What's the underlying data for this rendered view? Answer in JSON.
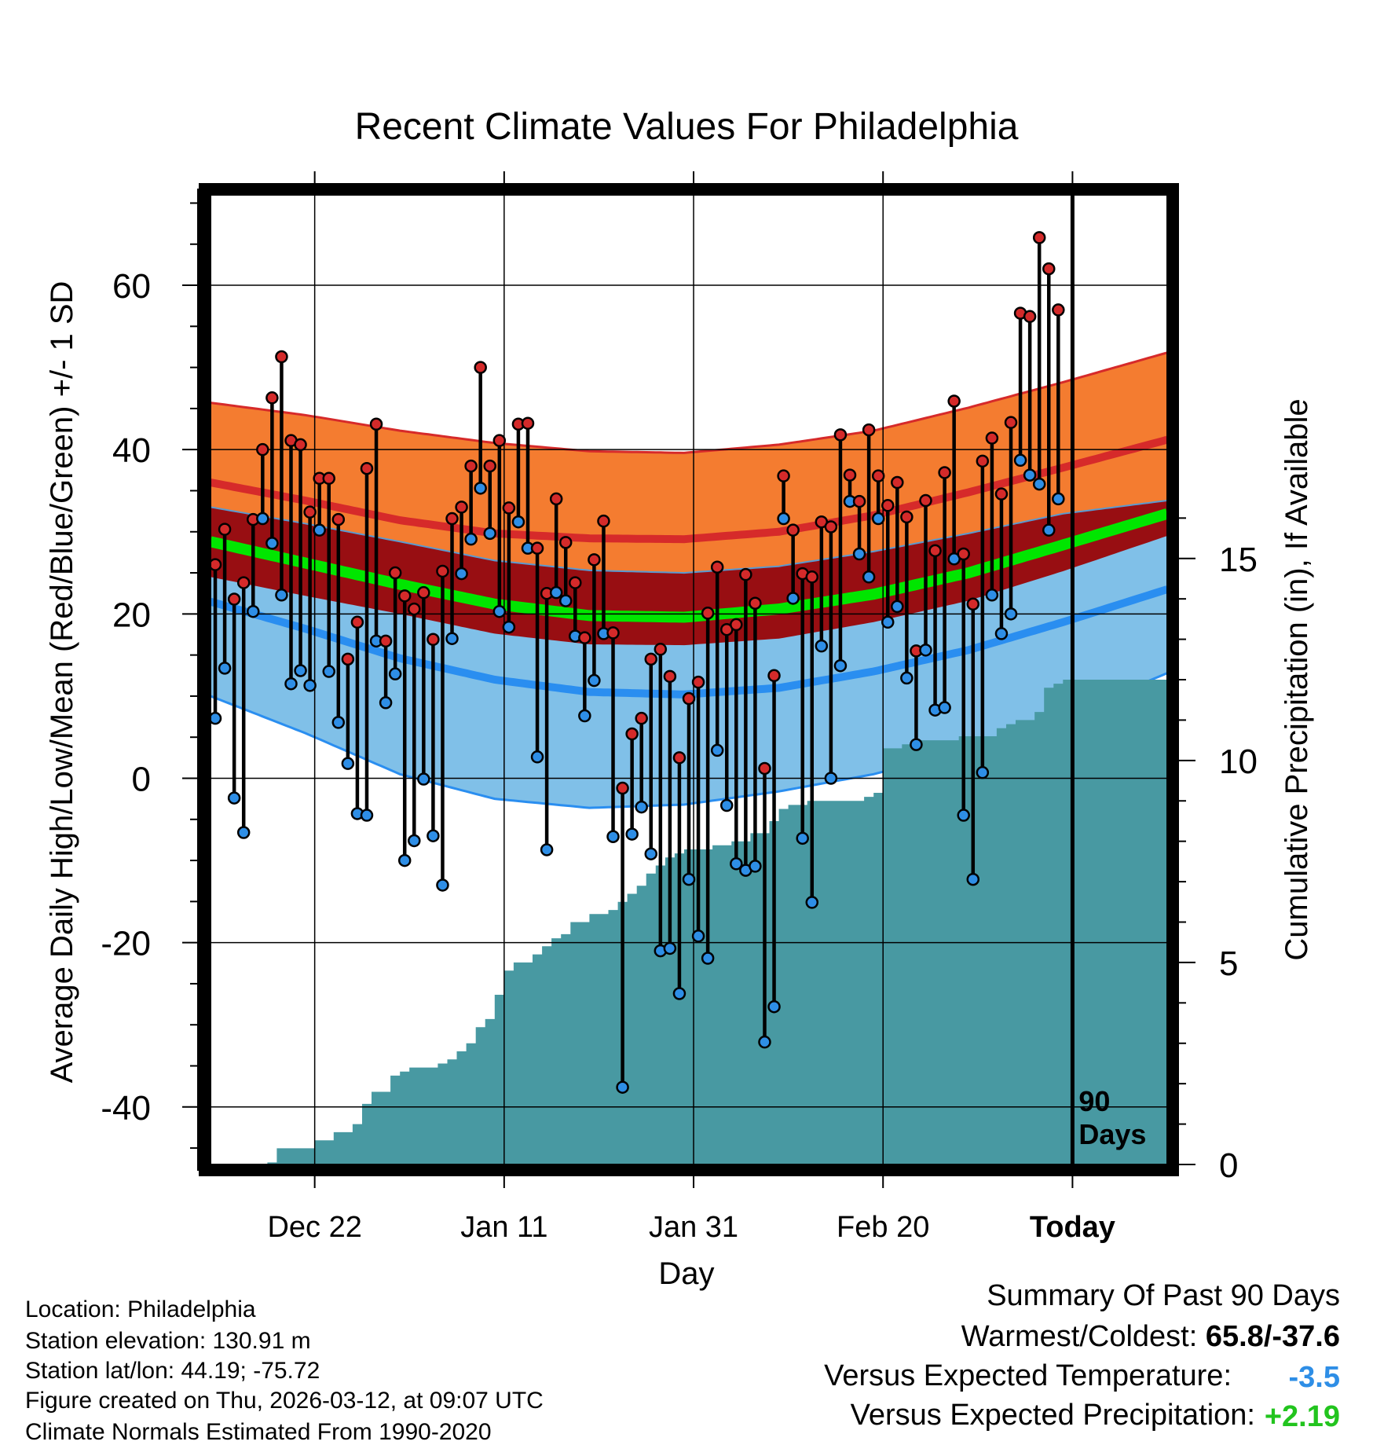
{
  "chart_data": {
    "type": "line",
    "title": "Recent Climate Values For Philadelphia",
    "xlabel": "Day",
    "ylabel": "Average Daily High/Low/Mean (Red/Blue/Green) +/- 1 SD",
    "y2label": "Cumulative Precipitation (in), If Available",
    "ylim": [
      -47,
      71
    ],
    "y2lim": [
      0,
      24
    ],
    "yticks": [
      -40,
      -20,
      0,
      20,
      40,
      60
    ],
    "y2ticks": [
      0,
      5,
      10,
      15
    ],
    "xlim": [
      0,
      101
    ],
    "x_ticks": [
      {
        "x": 11,
        "label": "Dec 22"
      },
      {
        "x": 31,
        "label": "Jan 11"
      },
      {
        "x": 51,
        "label": "Jan 31"
      },
      {
        "x": 71,
        "label": "Feb 20"
      },
      {
        "x": 91,
        "label": "Today"
      }
    ],
    "today_x": 91,
    "period_label": [
      "90",
      "Days"
    ],
    "colors": {
      "high_band": "#f47c30",
      "high_mean": "#d62a2a",
      "mean_band": "#980e12",
      "mean_line": "#00e600",
      "low_band": "#80c0e8",
      "low_mean": "#2a8ef0",
      "precip": "#4899a2",
      "high_dot": "#d42a2a",
      "low_dot": "#2e8ee6",
      "frame": "#000000"
    },
    "normals": {
      "x": [
        0,
        10,
        20,
        30,
        40,
        50,
        60,
        70,
        80,
        90,
        101
      ],
      "high_mean": [
        36,
        33.8,
        31.4,
        29.8,
        29.2,
        29.1,
        30,
        32,
        34.8,
        37.8,
        41.2
      ],
      "high_upper": [
        45.7,
        44.2,
        42.3,
        40.8,
        39.8,
        39.6,
        40.6,
        42.3,
        45.1,
        48.2,
        51.8
      ],
      "low_mean": [
        21.5,
        18.2,
        14.6,
        12,
        10.5,
        10.2,
        11,
        13,
        15.6,
        19,
        23
      ],
      "low_lower": [
        10,
        5.5,
        0.5,
        -2.5,
        -3.6,
        -3.2,
        -1.6,
        0.5,
        3.4,
        7.5,
        12.8
      ],
      "mean": [
        28.8,
        26.2,
        23.6,
        21.2,
        19.8,
        19.6,
        20.6,
        22.4,
        25,
        28.4,
        32.2
      ],
      "mean_band_upper": [
        33,
        31,
        28.8,
        26.5,
        25.3,
        25,
        25.8,
        27.6,
        29.8,
        32.2,
        33.8
      ],
      "mean_band_lower": [
        24.5,
        22.2,
        20,
        17.6,
        16.3,
        16.2,
        17,
        19,
        21.6,
        25.2,
        29.5
      ]
    },
    "series": [
      {
        "name": "Daily High",
        "values": [
          26,
          30.3,
          21.8,
          23.8,
          31.5,
          40,
          46.3,
          51.3,
          41.1,
          40.6,
          32.4,
          36.5,
          36.5,
          31.5,
          14.5,
          19,
          37.7,
          43.1,
          16.7,
          25,
          22.2,
          20.6,
          22.6,
          16.9,
          25.2,
          31.6,
          33,
          38,
          50,
          38,
          41.1,
          32.9,
          43.1,
          43.2,
          28,
          22.5,
          34,
          28.7,
          23.8,
          17.1,
          26.6,
          31.3,
          17.7,
          -1.2,
          5.4,
          7.3,
          14.5,
          15.7,
          12.4,
          2.5,
          9.7,
          11.7,
          20.1,
          25.7,
          18.1,
          18.7,
          24.8,
          21.3,
          1.2,
          12.5,
          36.8,
          30.2,
          24.9,
          24.5,
          31.2,
          30.6,
          41.8,
          36.9,
          33.7,
          42.4,
          36.8,
          33.2,
          36,
          31.8,
          15.5,
          33.8,
          27.7,
          37.2,
          45.9,
          27.3,
          21.2,
          38.6,
          41.4,
          34.6,
          43.3,
          56.6,
          56.2,
          65.8,
          62,
          57
        ]
      },
      {
        "name": "Daily Low",
        "values": [
          7.3,
          13.4,
          -2.4,
          -6.6,
          20.3,
          31.6,
          28.6,
          22.3,
          11.5,
          13.1,
          11.3,
          30.2,
          13,
          6.8,
          1.8,
          -4.3,
          -4.5,
          16.7,
          9.2,
          12.7,
          -10,
          -7.6,
          -0.1,
          -7,
          -13,
          17,
          24.9,
          29.1,
          35.3,
          29.8,
          20.3,
          18.4,
          31.2,
          28,
          2.6,
          -8.7,
          22.6,
          21.6,
          17.3,
          7.6,
          11.9,
          17.6,
          -7.1,
          -37.6,
          -6.8,
          -3.5,
          -9.2,
          -21,
          -20.7,
          -26.2,
          -12.3,
          -19.2,
          -21.9,
          3.4,
          -3.3,
          -10.4,
          -11.2,
          -10.7,
          -32.1,
          -27.8,
          31.6,
          21.9,
          -7.3,
          -15.1,
          16.1,
          0,
          13.7,
          33.7,
          27.3,
          24.5,
          31.6,
          19,
          20.9,
          12.2,
          4.1,
          15.6,
          8.3,
          8.6,
          26.7,
          -4.5,
          -12.3,
          0.7,
          22.3,
          17.6,
          20,
          38.7,
          36.9,
          35.8,
          30.2,
          34
        ]
      },
      {
        "name": "Cumulative Precipitation",
        "values": [
          0,
          0,
          0,
          0,
          0,
          0,
          0.05,
          0.4,
          0.4,
          0.4,
          0.4,
          0.6,
          0.6,
          0.8,
          0.8,
          1,
          1.5,
          1.8,
          1.8,
          2.2,
          2.3,
          2.4,
          2.4,
          2.4,
          2.5,
          2.6,
          2.8,
          3,
          3.4,
          3.6,
          4.2,
          4.8,
          5,
          5,
          5.2,
          5.4,
          5.6,
          5.7,
          6,
          6,
          6.2,
          6.2,
          6.3,
          6.5,
          6.7,
          6.9,
          7.2,
          7.4,
          7.6,
          7.7,
          7.8,
          7.8,
          7.8,
          7.9,
          7.9,
          8,
          8,
          8.2,
          8.2,
          8.5,
          8.8,
          8.9,
          8.9,
          9,
          9,
          9,
          9,
          9,
          9,
          9.1,
          9.2,
          10.3,
          10.3,
          10.4,
          10.4,
          10.5,
          10.5,
          10.5,
          10.5,
          10.6,
          10.6,
          10.6,
          10.6,
          10.8,
          10.9,
          11,
          11,
          11.2,
          11.8,
          11.9,
          12,
          12,
          12,
          12,
          12
        ]
      }
    ],
    "precip_x_start": 6
  },
  "info": {
    "location": "Location: Philadelphia",
    "elevation": "Station elevation: 130.91 m",
    "latlon": "Station lat/lon: 44.19; -75.72",
    "created": "Figure created on Thu, 2026-03-12, at 09:07 UTC",
    "normals": "Climate Normals Estimated From 1990-2020"
  },
  "summary": {
    "heading": "Summary Of Past 90 Days",
    "warmest_label": "Warmest/Coldest: ",
    "warmest_value": "65.8/-37.6",
    "temp_label": "Versus Expected Temperature:",
    "temp_value": "-3.5",
    "precip_label": "Versus Expected Precipitation:",
    "precip_value": "+2.19"
  }
}
